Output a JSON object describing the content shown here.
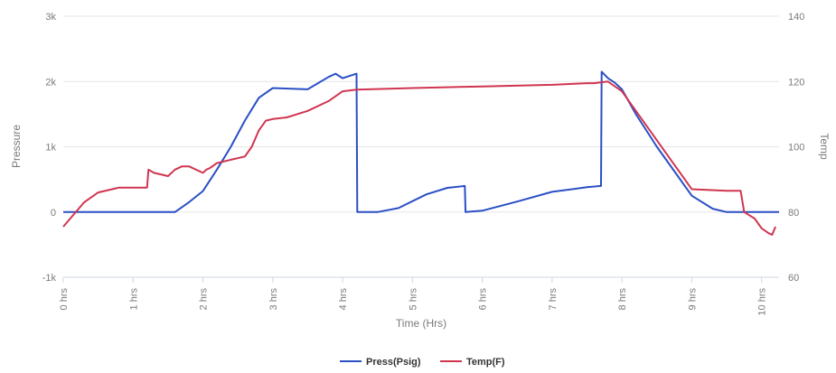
{
  "chart_data": {
    "type": "line",
    "title": "",
    "xlabel": "Time (Hrs)",
    "ylabel_left": "Pressure",
    "ylabel_right": "Temp",
    "grid": true,
    "legend_position": "bottom-center",
    "x_range": [
      0,
      10.25
    ],
    "x_ticks": [
      0,
      1,
      2,
      3,
      4,
      5,
      6,
      7,
      8,
      9,
      10
    ],
    "x_tick_labels": [
      "0 hrs",
      "1 hrs",
      "2 hrs",
      "3 hrs",
      "4 hrs",
      "5 hrs",
      "6 hrs",
      "7 hrs",
      "8 hrs",
      "9 hrs",
      "10 hrs"
    ],
    "y_left_range": [
      -1000,
      3000
    ],
    "y_left_ticks": [
      -1000,
      0,
      1000,
      2000,
      3000
    ],
    "y_left_tick_labels": [
      "-1k",
      "0",
      "1k",
      "2k",
      "3k"
    ],
    "y_right_range": [
      60,
      140
    ],
    "y_right_ticks": [
      60,
      80,
      100,
      120,
      140
    ],
    "y_right_tick_labels": [
      "60",
      "80",
      "100",
      "120",
      "140"
    ],
    "series": [
      {
        "name": "Press(Psig)",
        "axis": "left",
        "color": "#2a4fc4",
        "x": [
          0,
          1.6,
          1.8,
          2.0,
          2.2,
          2.4,
          2.6,
          2.8,
          3.0,
          3.5,
          3.8,
          3.9,
          4.0,
          4.2,
          4.21,
          4.5,
          4.8,
          5.2,
          5.5,
          5.75,
          5.76,
          6.0,
          6.5,
          7.0,
          7.5,
          7.7,
          7.71,
          7.8,
          7.9,
          8.0,
          8.2,
          8.5,
          8.8,
          9.0,
          9.3,
          9.5,
          9.6,
          9.8,
          10.0,
          10.25
        ],
        "y": [
          0,
          0,
          150,
          320,
          650,
          1000,
          1400,
          1750,
          1900,
          1880,
          2070,
          2120,
          2050,
          2120,
          0,
          0,
          60,
          270,
          370,
          400,
          0,
          20,
          160,
          310,
          380,
          400,
          2150,
          2050,
          1980,
          1880,
          1500,
          1000,
          550,
          250,
          50,
          0,
          0,
          0,
          0,
          0
        ]
      },
      {
        "name": "Temp(F)",
        "axis": "right",
        "color": "#d03550",
        "x": [
          0,
          0.1,
          0.3,
          0.5,
          0.8,
          1.0,
          1.2,
          1.22,
          1.3,
          1.5,
          1.6,
          1.7,
          1.8,
          2.0,
          2.05,
          2.1,
          2.2,
          2.4,
          2.6,
          2.7,
          2.8,
          2.9,
          3.0,
          3.2,
          3.5,
          3.8,
          4.0,
          4.2,
          5.0,
          6.0,
          7.0,
          7.5,
          7.6,
          7.8,
          8.0,
          8.3,
          8.5,
          8.7,
          8.9,
          9.0,
          9.5,
          9.7,
          9.75,
          9.9,
          10.0,
          10.1,
          10.15,
          10.2
        ],
        "y": [
          75.5,
          78,
          83,
          86,
          87.5,
          87.5,
          87.5,
          93,
          92,
          91,
          93,
          94,
          94,
          92,
          93,
          93.5,
          95,
          96,
          97,
          100,
          105,
          108,
          108.5,
          109,
          111,
          114,
          117,
          117.5,
          118,
          118.5,
          119,
          119.5,
          119.5,
          120,
          117,
          108,
          102,
          96,
          90,
          87,
          86.5,
          86.5,
          80,
          78,
          75,
          73.5,
          73,
          75.5
        ]
      }
    ]
  }
}
